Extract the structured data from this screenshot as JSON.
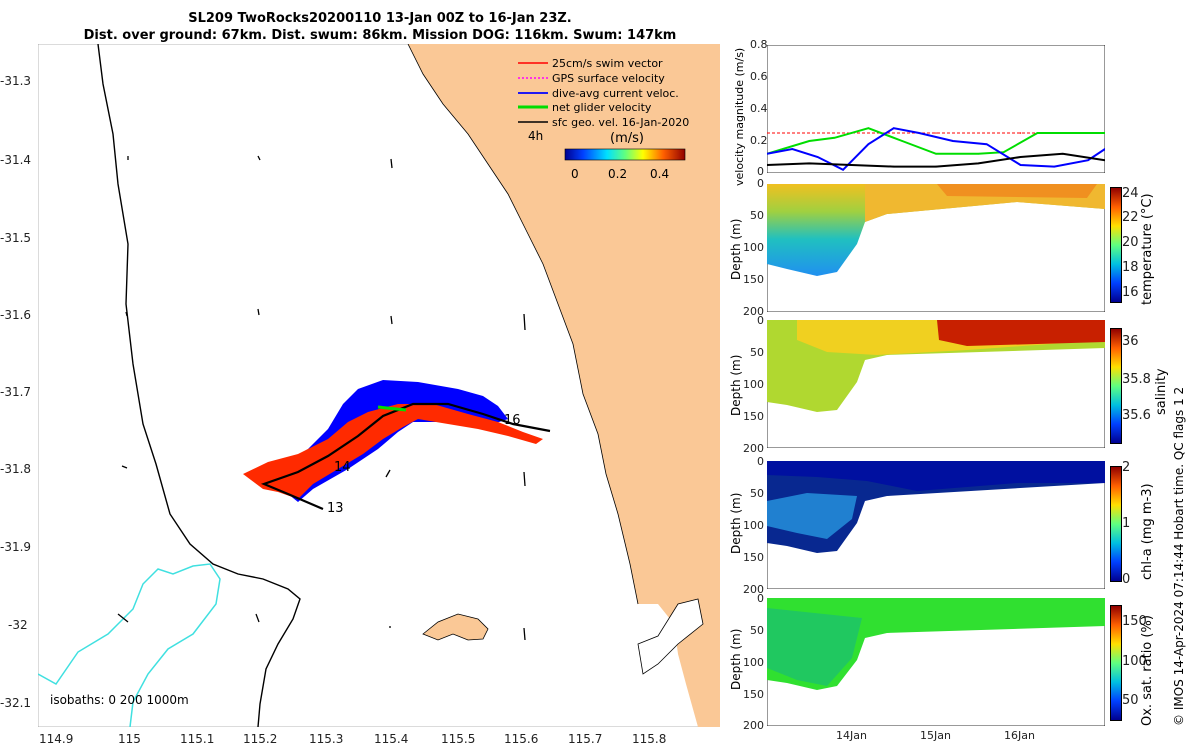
{
  "title": {
    "line1": "SL209 TwoRocks20200110 13-Jan 00Z to 16-Jan 23Z.",
    "line2": "Dist. over ground: 67km. Dist. swum: 86km. Mission DOG: 116km. Swum: 147km"
  },
  "map": {
    "x_ticks": [
      "114.9",
      "115",
      "115.1",
      "115.2",
      "115.3",
      "115.4",
      "115.5",
      "115.6",
      "115.7",
      "115.8"
    ],
    "y_ticks": [
      "-31.3",
      "-31.4",
      "-31.5",
      "-31.6",
      "-31.7",
      "-31.8",
      "-31.9",
      "-32",
      "-32.1"
    ],
    "legend": [
      {
        "label": "25cm/s swim vector",
        "color": "#ff0000"
      },
      {
        "label": "GPS surface velocity",
        "color": "#ff00ff"
      },
      {
        "label": "dive-avg current veloc.",
        "color": "#0000ff"
      },
      {
        "label": "net glider velocity",
        "color": "#00dd00"
      },
      {
        "label": "sfc geo. vel. 16-Jan-2020",
        "color": "#000000"
      }
    ],
    "colorbar_label": "(m/s)",
    "colorbar_ticks": [
      "0",
      "0.2",
      "0.4"
    ],
    "time_tag": "4h",
    "day_labels": [
      "13",
      "14",
      "16"
    ],
    "isobaths_label": "isobaths: 0   200  1000m",
    "colors": {
      "land": "#fac896",
      "ocean": "#ffffff",
      "isobath_200": "#40e0e0",
      "isobath_0": "#000000"
    }
  },
  "right_panels": {
    "velocity": {
      "ylabel": "velocity magnitude (m/s)",
      "y_ticks": [
        "0",
        "0.2",
        "0.4",
        "0.6",
        "0.8"
      ]
    },
    "temperature": {
      "ylabel": "Depth (m)",
      "cb_label": "temperature (°C)",
      "cb_ticks": [
        "24",
        "22",
        "20",
        "18",
        "16"
      ],
      "y_ticks": [
        "0",
        "50",
        "100",
        "150",
        "200"
      ]
    },
    "salinity": {
      "ylabel": "Depth (m)",
      "cb_label": "salinity",
      "cb_ticks": [
        "36",
        "35.8",
        "35.6"
      ],
      "y_ticks": [
        "0",
        "50",
        "100",
        "150",
        "200"
      ]
    },
    "chla": {
      "ylabel": "Depth (m)",
      "cb_label": "chl-a (mg m-3)",
      "cb_ticks": [
        "2",
        "1",
        "0"
      ],
      "y_ticks": [
        "0",
        "50",
        "100",
        "150",
        "200"
      ]
    },
    "oxygen": {
      "ylabel": "Depth (m)",
      "cb_label": "Ox. sat. ratio (%)",
      "cb_ticks": [
        "150",
        "100",
        "50"
      ],
      "y_ticks": [
        "0",
        "50",
        "100",
        "150",
        "200"
      ]
    },
    "x_ticks": [
      "14Jan",
      "15Jan",
      "16Jan"
    ],
    "footer": "© IMOS 14-Apr-2024 07:14:44 Hobart time. QC flags 1  2"
  },
  "chart_data": [
    {
      "type": "line",
      "title": "",
      "xlabel": "",
      "ylabel": "velocity magnitude (m/s)",
      "ylim": [
        0,
        0.8
      ],
      "xlim": [
        "13-Jan 00Z",
        "16-Jan 23Z"
      ],
      "series": [
        {
          "name": "",
          "color": "#ff0000",
          "x": [
            13.0,
            14.0,
            15.0,
            16.0,
            17.0
          ],
          "values": [
            0.25,
            0.25,
            0.25,
            0.25,
            0.25
          ]
        },
        {
          "name": "",
          "color": "#00dd00",
          "x": [
            13.0,
            13.5,
            13.8,
            14.2,
            14.6,
            15.0,
            15.5,
            15.8,
            16.2,
            16.6,
            17.0
          ],
          "values": [
            0.12,
            0.2,
            0.22,
            0.28,
            0.2,
            0.12,
            0.12,
            0.13,
            0.25,
            0.25,
            0.25
          ]
        },
        {
          "name": "",
          "color": "#0000ff",
          "x": [
            13.0,
            13.3,
            13.6,
            13.9,
            14.2,
            14.5,
            14.8,
            15.2,
            15.6,
            16.0,
            16.4,
            16.8,
            17.0
          ],
          "values": [
            0.12,
            0.15,
            0.1,
            0.02,
            0.18,
            0.28,
            0.25,
            0.2,
            0.18,
            0.05,
            0.04,
            0.08,
            0.15
          ]
        },
        {
          "name": "",
          "color": "#000000",
          "x": [
            13.0,
            13.5,
            14.0,
            14.5,
            15.0,
            15.5,
            16.0,
            16.5,
            17.0
          ],
          "values": [
            0.05,
            0.06,
            0.05,
            0.04,
            0.04,
            0.06,
            0.1,
            0.12,
            0.08
          ]
        }
      ]
    }
  ]
}
